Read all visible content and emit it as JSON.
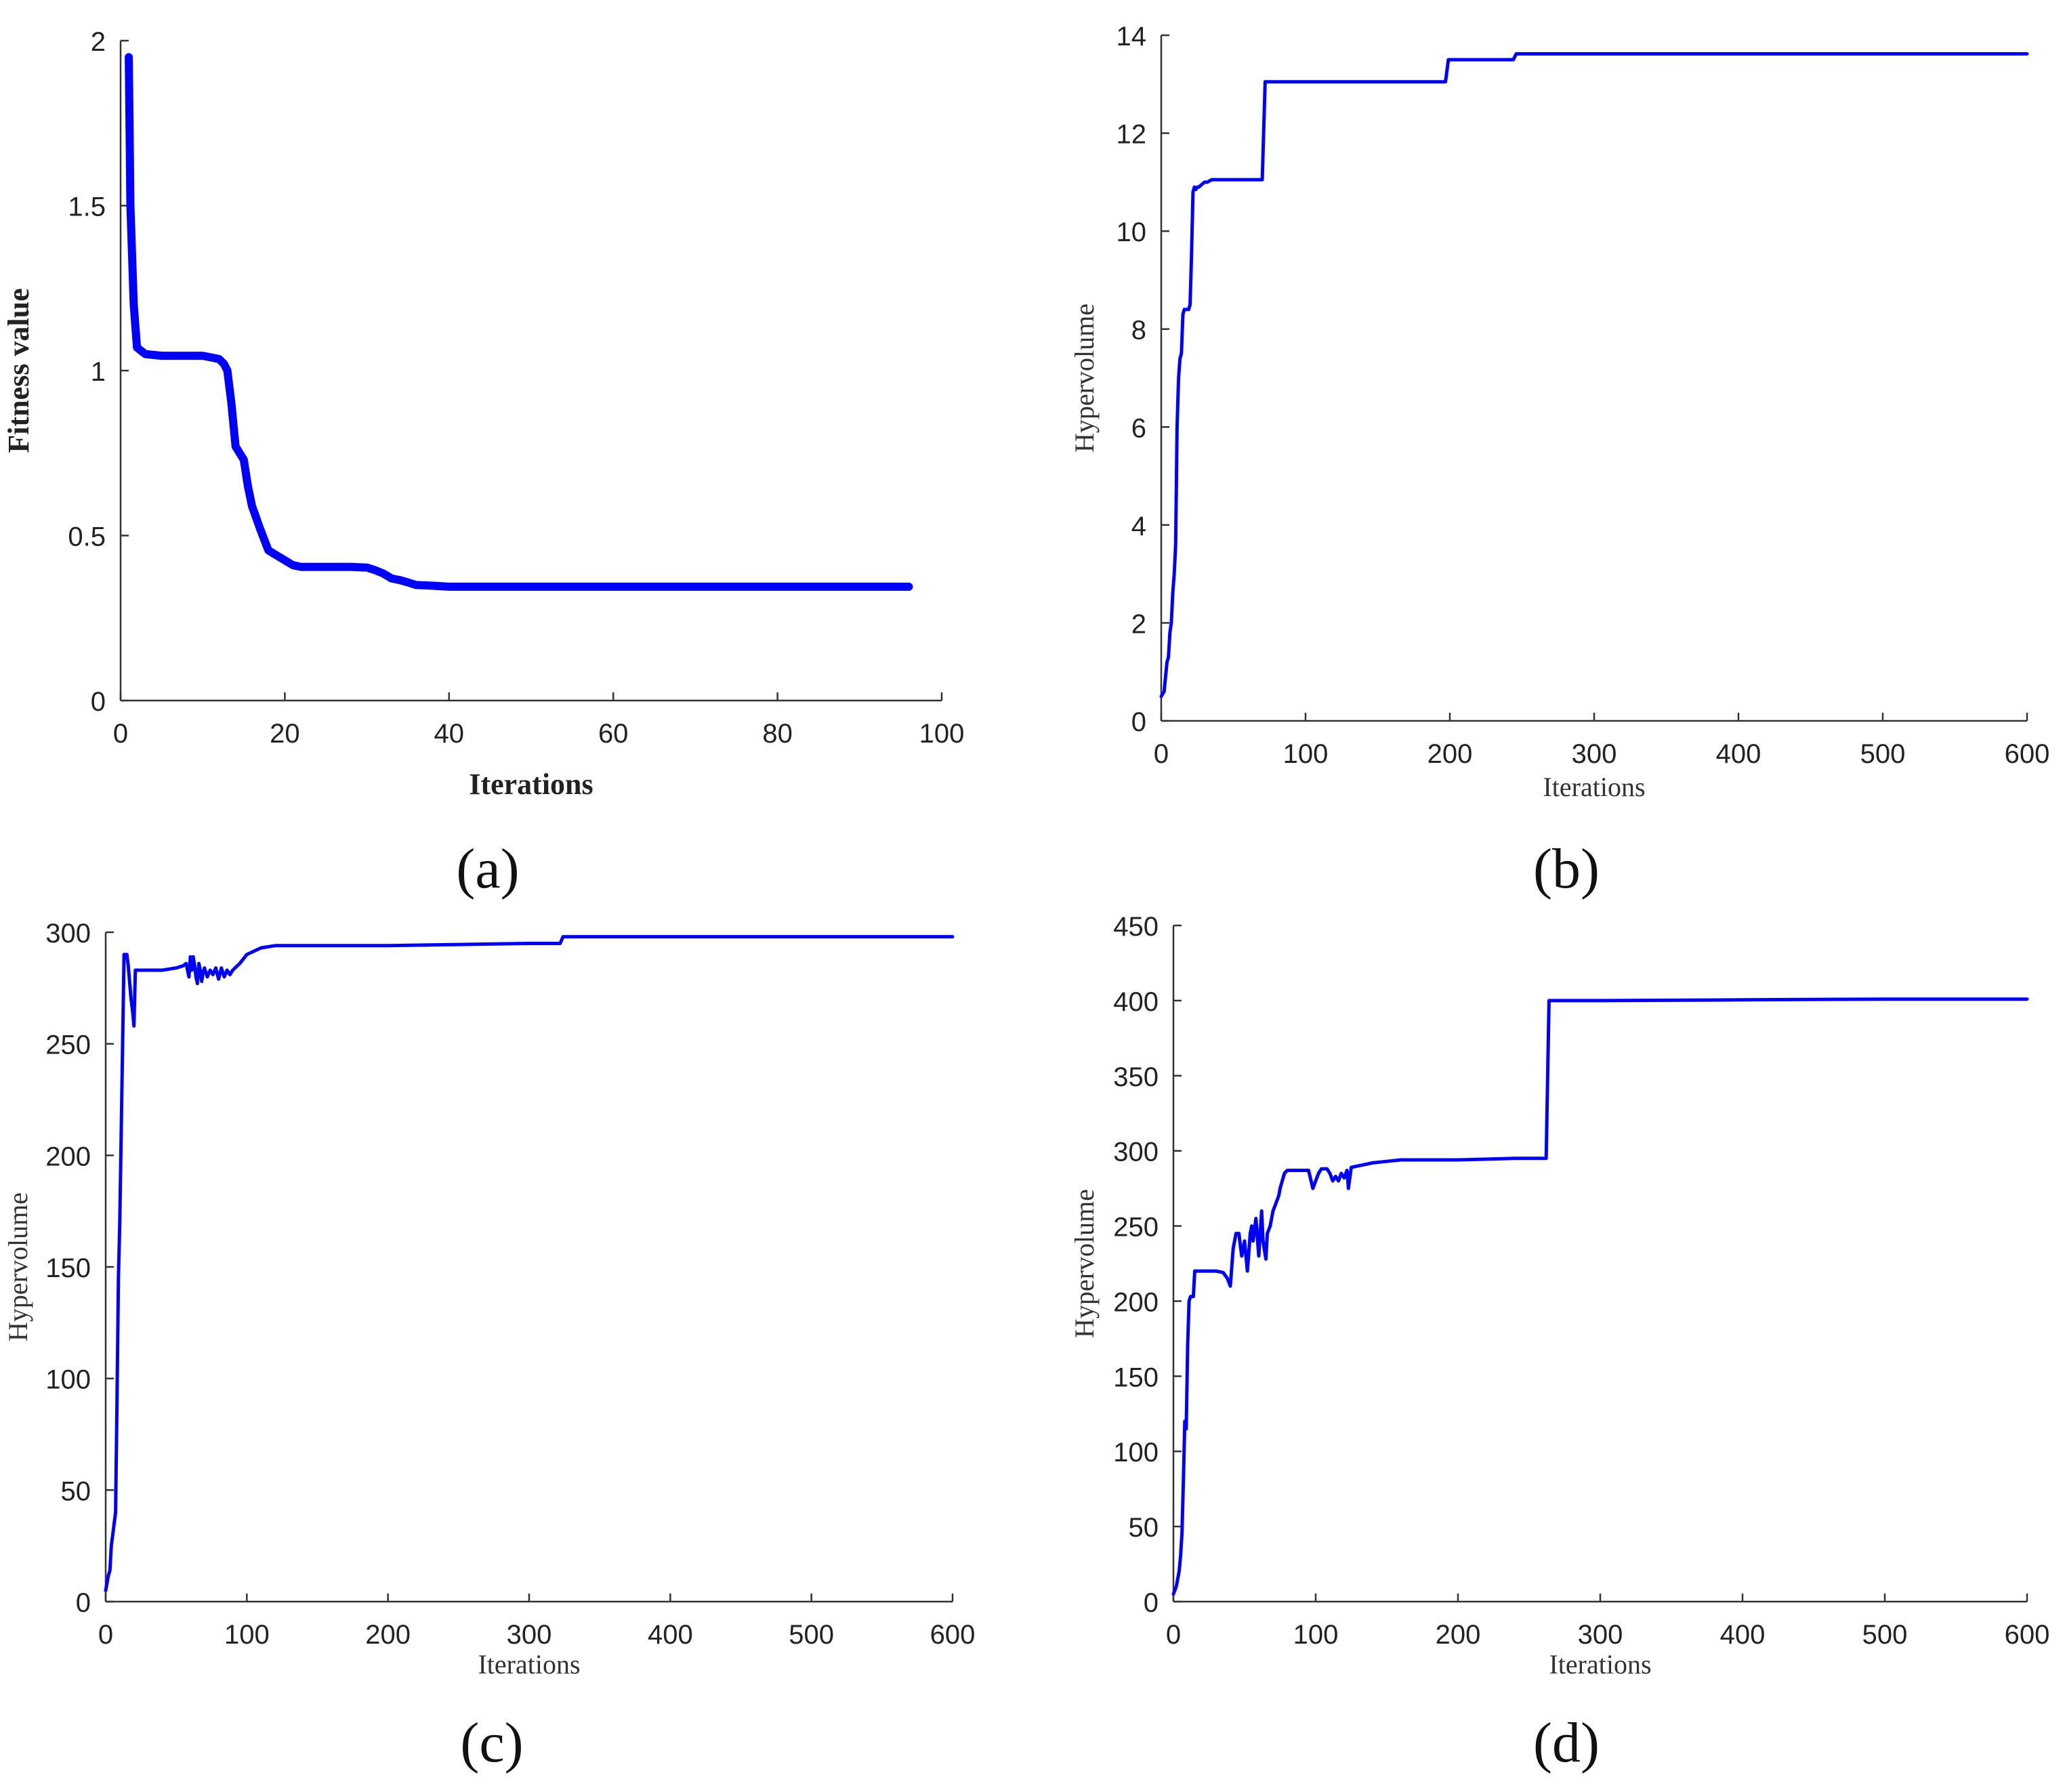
{
  "colors": {
    "line": "#0000ff",
    "axis": "#333333",
    "text": "#222222",
    "background": "#ffffff"
  },
  "chart_data": [
    {
      "type": "line",
      "panel_label": "(a)",
      "title": "",
      "xlabel": "Iterations",
      "ylabel": "Fitness value",
      "xlim": [
        0,
        100
      ],
      "ylim": [
        0,
        2
      ],
      "xticks": [
        0,
        20,
        40,
        60,
        80,
        100
      ],
      "yticks": [
        0,
        0.5,
        1,
        1.5,
        2
      ],
      "xtick_labels": [
        "0",
        "20",
        "40",
        "60",
        "80",
        "100"
      ],
      "ytick_labels": [
        "0",
        "0.5",
        "1",
        "1.5",
        "2"
      ],
      "grid": false,
      "series": [
        {
          "color": "#0000ff",
          "x": [
            1,
            1.2,
            1.6,
            2,
            3,
            5,
            8,
            10,
            11,
            12,
            12.6,
            13,
            13.5,
            14,
            14.5,
            15,
            15.5,
            16,
            17,
            18,
            19,
            20,
            21,
            22,
            25,
            28,
            30,
            31,
            32,
            33,
            34,
            35,
            36,
            38,
            40,
            45,
            50,
            60,
            70,
            80,
            90,
            96
          ],
          "y": [
            1.95,
            1.5,
            1.2,
            1.07,
            1.05,
            1.045,
            1.045,
            1.045,
            1.04,
            1.035,
            1.02,
            1.0,
            0.9,
            0.77,
            0.75,
            0.73,
            0.65,
            0.59,
            0.52,
            0.455,
            0.44,
            0.425,
            0.41,
            0.405,
            0.405,
            0.405,
            0.403,
            0.395,
            0.385,
            0.37,
            0.365,
            0.358,
            0.35,
            0.348,
            0.345,
            0.345,
            0.345,
            0.345,
            0.345,
            0.345,
            0.345,
            0.345
          ]
        }
      ]
    },
    {
      "type": "line",
      "panel_label": "(b)",
      "title": "",
      "xlabel": "Iterations",
      "ylabel": "Hypervolume",
      "xlim": [
        0,
        600
      ],
      "ylim": [
        0,
        14
      ],
      "xticks": [
        0,
        100,
        200,
        300,
        400,
        500,
        600
      ],
      "yticks": [
        0,
        2,
        4,
        6,
        8,
        10,
        12,
        14
      ],
      "xtick_labels": [
        "0",
        "100",
        "200",
        "300",
        "400",
        "500",
        "600"
      ],
      "ytick_labels": [
        "0",
        "2",
        "4",
        "6",
        "8",
        "10",
        "12",
        "14"
      ],
      "grid": false,
      "series": [
        {
          "color": "#0000ff",
          "x": [
            0,
            2,
            3,
            4,
            5,
            6,
            7,
            8,
            9,
            10,
            11,
            12,
            13,
            14,
            15,
            16,
            17,
            18,
            19,
            20,
            21,
            22,
            23,
            24,
            25,
            26,
            28,
            30,
            32,
            35,
            40,
            50,
            60,
            70,
            72,
            80,
            100,
            150,
            180,
            197,
            199,
            210,
            230,
            244,
            246,
            300,
            400,
            500,
            600
          ],
          "y": [
            0.5,
            0.6,
            0.9,
            1.2,
            1.3,
            1.8,
            2.0,
            2.6,
            3.0,
            3.6,
            6.0,
            7.0,
            7.4,
            7.5,
            8.3,
            8.4,
            8.4,
            8.4,
            8.4,
            8.5,
            9.5,
            10.8,
            10.9,
            10.85,
            10.9,
            10.9,
            10.95,
            11.0,
            11.0,
            11.05,
            11.05,
            11.05,
            11.05,
            11.05,
            13.05,
            13.05,
            13.05,
            13.05,
            13.05,
            13.05,
            13.5,
            13.5,
            13.5,
            13.5,
            13.62,
            13.62,
            13.62,
            13.62,
            13.62
          ]
        }
      ]
    },
    {
      "type": "line",
      "panel_label": "(c)",
      "title": "",
      "xlabel": "Iterations",
      "ylabel": "Hypervolume",
      "xlim": [
        0,
        600
      ],
      "ylim": [
        0,
        300
      ],
      "xticks": [
        0,
        100,
        200,
        300,
        400,
        500,
        600
      ],
      "yticks": [
        0,
        50,
        100,
        150,
        200,
        250,
        300
      ],
      "xtick_labels": [
        "0",
        "100",
        "200",
        "300",
        "400",
        "500",
        "600"
      ],
      "ytick_labels": [
        "0",
        "50",
        "100",
        "150",
        "200",
        "250",
        "300"
      ],
      "grid": false,
      "series": [
        {
          "color": "#0000ff",
          "x": [
            0,
            2,
            3,
            4,
            5,
            6,
            7,
            8,
            9,
            10,
            11,
            12,
            13,
            14,
            15,
            16,
            18,
            19,
            20,
            21,
            22,
            25,
            30,
            40,
            50,
            55,
            57,
            59,
            60,
            61,
            62,
            63,
            64,
            65,
            66,
            67,
            68,
            69,
            70,
            72,
            74,
            76,
            78,
            80,
            82,
            84,
            86,
            88,
            90,
            95,
            100,
            110,
            120,
            150,
            200,
            250,
            300,
            322,
            324,
            330,
            400,
            500,
            600
          ],
          "y": [
            5,
            12,
            14,
            25,
            30,
            35,
            40,
            90,
            145,
            170,
            210,
            250,
            290,
            290,
            290,
            285,
            270,
            265,
            258,
            283,
            283,
            283,
            283,
            283,
            284,
            285,
            286,
            280,
            289,
            283,
            289,
            285,
            280,
            277,
            286,
            283,
            278,
            282,
            284,
            280,
            283,
            281,
            284,
            279,
            284,
            280,
            283,
            281,
            283,
            286,
            290,
            293,
            294,
            294,
            294,
            294.5,
            295,
            295,
            298,
            298,
            298,
            298,
            298
          ]
        }
      ]
    },
    {
      "type": "line",
      "panel_label": "(d)",
      "title": "",
      "xlabel": "Iterations",
      "ylabel": "Hypervolume",
      "xlim": [
        0,
        600
      ],
      "ylim": [
        0,
        450
      ],
      "xticks": [
        0,
        100,
        200,
        300,
        400,
        500,
        600
      ],
      "yticks": [
        0,
        50,
        100,
        150,
        200,
        250,
        300,
        350,
        400,
        450
      ],
      "xtick_labels": [
        "0",
        "100",
        "200",
        "300",
        "400",
        "500",
        "600"
      ],
      "ytick_labels": [
        "0",
        "50",
        "100",
        "150",
        "200",
        "250",
        "300",
        "350",
        "400",
        "450"
      ],
      "grid": false,
      "series": [
        {
          "color": "#0000ff",
          "x": [
            0,
            2,
            3,
            4,
            5,
            6,
            7,
            8,
            9,
            10,
            11,
            12,
            13,
            14,
            15,
            16,
            18,
            20,
            25,
            30,
            35,
            38,
            40,
            42,
            44,
            46,
            48,
            50,
            52,
            54,
            55,
            56,
            58,
            60,
            62,
            63,
            65,
            66,
            68,
            70,
            72,
            74,
            75,
            78,
            80,
            85,
            90,
            95,
            98,
            100,
            102,
            104,
            106,
            108,
            110,
            112,
            114,
            116,
            118,
            120,
            122,
            123,
            125,
            130,
            140,
            150,
            160,
            170,
            200,
            240,
            262,
            264,
            270,
            300,
            400,
            500,
            600
          ],
          "y": [
            5,
            10,
            15,
            20,
            30,
            45,
            80,
            120,
            115,
            170,
            200,
            203,
            203,
            203,
            220,
            220,
            220,
            220,
            220,
            220,
            219,
            215,
            210,
            235,
            245,
            245,
            230,
            240,
            220,
            245,
            250,
            240,
            255,
            230,
            260,
            240,
            228,
            245,
            250,
            260,
            265,
            270,
            275,
            285,
            287,
            287,
            287,
            287,
            275,
            280,
            285,
            288,
            288,
            288,
            285,
            280,
            283,
            280,
            285,
            282,
            287,
            275,
            289,
            290,
            292,
            293,
            294,
            294,
            294,
            295,
            295,
            400,
            400,
            400,
            400.5,
            401,
            401
          ]
        }
      ]
    }
  ]
}
